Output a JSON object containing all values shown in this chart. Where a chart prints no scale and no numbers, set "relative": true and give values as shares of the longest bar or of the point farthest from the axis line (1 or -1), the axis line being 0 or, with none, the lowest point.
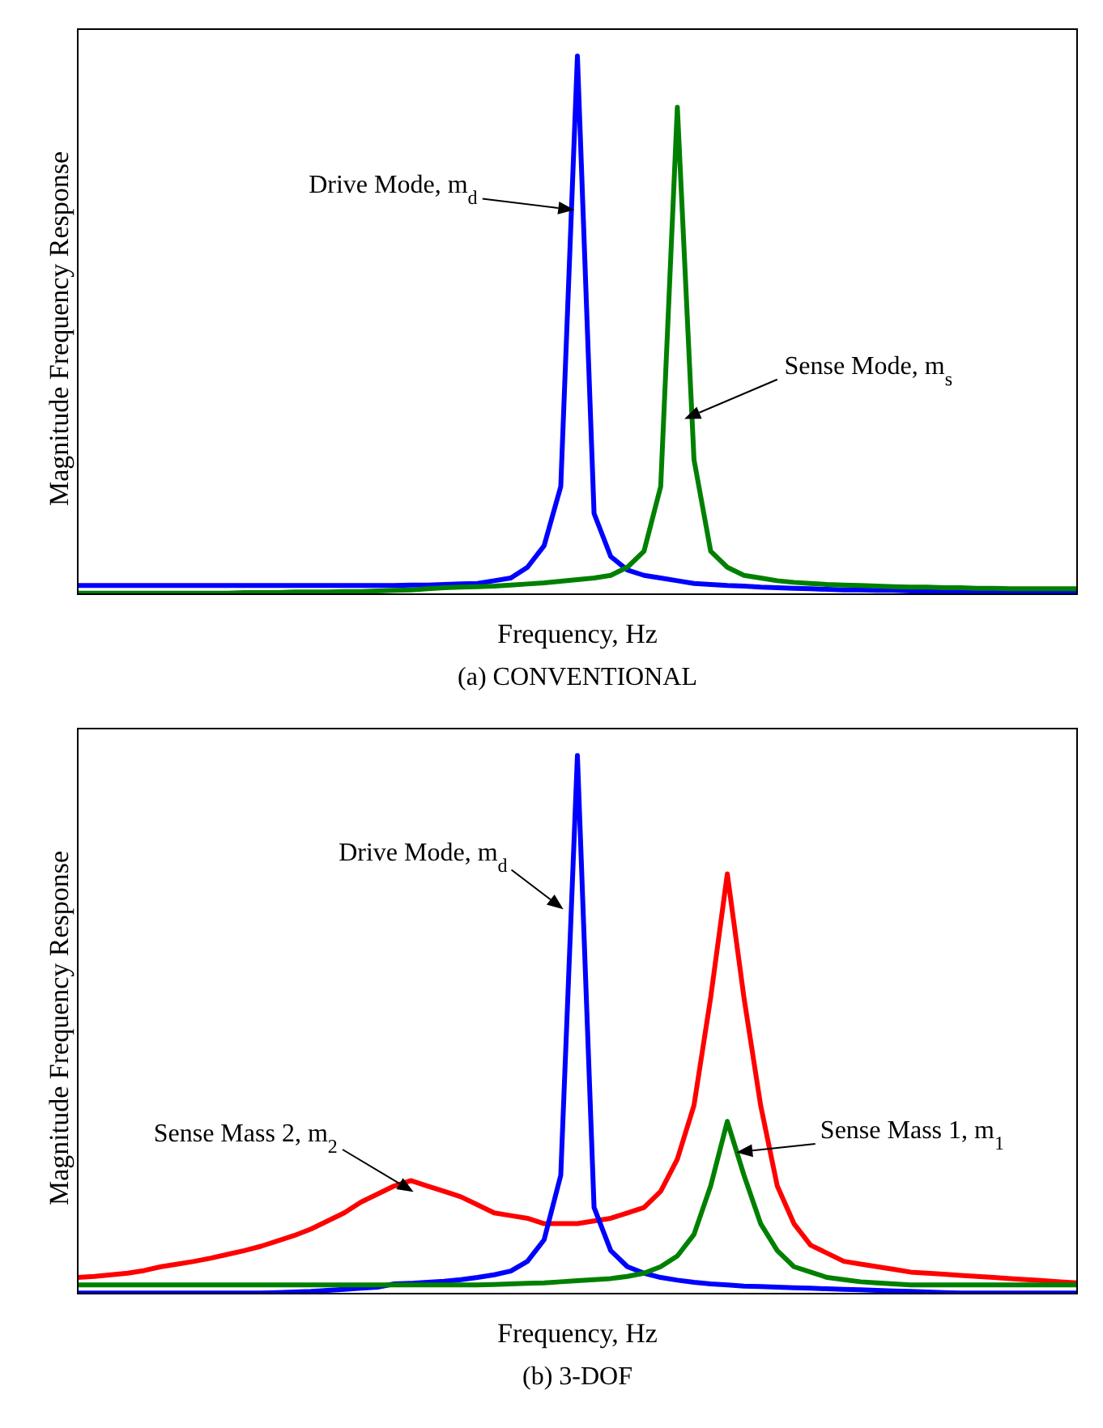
{
  "chart_data": [
    {
      "type": "line",
      "title": "(a)  CONVENTIONAL",
      "xlabel": "Frequency, Hz",
      "ylabel": "Magnitude Frequency Response",
      "relative": true,
      "tick_labels": false,
      "marker": "none",
      "line_style": "solid",
      "annotations": [
        "Drive Mode, m$_{d}$",
        "Sense Mode, m$_{s}$"
      ],
      "categories": [
        null,
        null,
        null,
        null,
        null,
        null,
        null,
        null,
        null,
        null,
        null,
        null,
        null,
        null,
        null,
        null,
        null,
        null,
        null,
        null,
        null,
        null,
        null,
        null,
        null,
        null,
        null,
        null,
        null,
        null,
        null,
        null,
        null,
        null,
        null,
        null,
        null,
        null,
        null,
        null,
        null,
        null,
        null,
        null,
        null,
        null,
        null,
        null,
        null,
        null,
        null,
        null,
        null,
        null,
        null,
        null,
        null,
        null,
        null,
        null,
        null
      ],
      "series": [
        {
          "color": "#0000ff",
          "values": [
            0.016,
            0.016,
            0.016,
            0.016,
            0.016,
            0.016,
            0.016,
            0.016,
            0.016,
            0.016,
            0.016,
            0.016,
            0.016,
            0.016,
            0.016,
            0.016,
            0.016,
            0.016,
            0.016,
            0.016,
            0.017,
            0.017,
            0.018,
            0.019,
            0.02,
            0.025,
            0.03,
            0.05,
            0.09,
            0.2,
            1,
            0.15,
            0.07,
            0.045,
            0.035,
            0.03,
            0.025,
            0.02,
            0.018,
            0.016,
            0.015,
            0.013,
            0.012,
            0.011,
            0.01,
            0.009,
            0.008,
            0.008,
            0.007,
            0.007,
            0.006,
            0.006,
            0.006,
            0.005,
            0.005,
            0.005,
            0.005,
            0.005,
            0.005,
            0.005,
            0.005
          ]
        },
        {
          "color": "#008000",
          "values": [
            0.002,
            0.002,
            0.002,
            0.002,
            0.002,
            0.002,
            0.002,
            0.002,
            0.002,
            0.002,
            0.003,
            0.003,
            0.003,
            0.004,
            0.004,
            0.004,
            0.005,
            0.005,
            0.006,
            0.007,
            0.008,
            0.01,
            0.012,
            0.013,
            0.014,
            0.015,
            0.017,
            0.019,
            0.021,
            0.024,
            0.027,
            0.03,
            0.035,
            0.05,
            0.08,
            0.2,
            0.905,
            0.25,
            0.08,
            0.05,
            0.035,
            0.03,
            0.025,
            0.022,
            0.02,
            0.018,
            0.017,
            0.016,
            0.015,
            0.014,
            0.013,
            0.013,
            0.012,
            0.012,
            0.011,
            0.011,
            0.01,
            0.01,
            0.01,
            0.01,
            0.01
          ]
        }
      ]
    },
    {
      "type": "line",
      "title": "(b)  3-DOF",
      "xlabel": "Frequency, Hz",
      "ylabel": "Magnitude Frequency Response",
      "relative": true,
      "tick_labels": false,
      "marker": "none",
      "line_style": "solid",
      "annotations": [
        "Drive Mode, m$_{d}$",
        "Sense Mass 1, m$_{1}$",
        "Sense Mass 2, m$_{2}$"
      ],
      "categories": [
        null,
        null,
        null,
        null,
        null,
        null,
        null,
        null,
        null,
        null,
        null,
        null,
        null,
        null,
        null,
        null,
        null,
        null,
        null,
        null,
        null,
        null,
        null,
        null,
        null,
        null,
        null,
        null,
        null,
        null,
        null,
        null,
        null,
        null,
        null,
        null,
        null,
        null,
        null,
        null,
        null,
        null,
        null,
        null,
        null,
        null,
        null,
        null,
        null,
        null,
        null,
        null,
        null,
        null,
        null,
        null,
        null,
        null,
        null,
        null,
        null
      ],
      "series": [
        {
          "color": "#ff0000",
          "values": [
            0.03,
            0.032,
            0.035,
            0.038,
            0.043,
            0.05,
            0.055,
            0.06,
            0.066,
            0.073,
            0.08,
            0.088,
            0.098,
            0.108,
            0.12,
            0.135,
            0.15,
            0.17,
            0.185,
            0.2,
            0.21,
            0.2,
            0.19,
            0.18,
            0.165,
            0.15,
            0.145,
            0.14,
            0.13,
            0.13,
            0.13,
            0.135,
            0.14,
            0.15,
            0.16,
            0.19,
            0.25,
            0.35,
            0.55,
            0.78,
            0.55,
            0.35,
            0.2,
            0.13,
            0.09,
            0.075,
            0.06,
            0.055,
            0.05,
            0.045,
            0.04,
            0.038,
            0.036,
            0.034,
            0.032,
            0.03,
            0.028,
            0.026,
            0.024,
            0.022,
            0.02
          ]
        },
        {
          "color": "#0000ff",
          "values": [
            0.001,
            0.001,
            0.001,
            0.001,
            0.001,
            0.001,
            0.001,
            0.001,
            0.001,
            0.001,
            0.001,
            0.001,
            0.002,
            0.003,
            0.004,
            0.006,
            0.008,
            0.01,
            0.012,
            0.018,
            0.019,
            0.021,
            0.023,
            0.026,
            0.03,
            0.035,
            0.042,
            0.06,
            0.1,
            0.22,
            1,
            0.16,
            0.08,
            0.05,
            0.038,
            0.03,
            0.025,
            0.021,
            0.018,
            0.016,
            0.014,
            0.013,
            0.012,
            0.011,
            0.01,
            0.009,
            0.008,
            0.007,
            0.006,
            0.005,
            0.004,
            0.003,
            0.002,
            0.001,
            0.001,
            0.001,
            0.001,
            0.001,
            0.001,
            0.001,
            0.001
          ]
        },
        {
          "color": "#008000",
          "values": [
            0.016,
            0.016,
            0.016,
            0.016,
            0.016,
            0.016,
            0.016,
            0.016,
            0.016,
            0.016,
            0.016,
            0.016,
            0.016,
            0.016,
            0.016,
            0.016,
            0.016,
            0.016,
            0.016,
            0.016,
            0.016,
            0.016,
            0.016,
            0.016,
            0.016,
            0.017,
            0.018,
            0.019,
            0.02,
            0.022,
            0.024,
            0.026,
            0.028,
            0.032,
            0.038,
            0.05,
            0.07,
            0.11,
            0.2,
            0.32,
            0.22,
            0.13,
            0.08,
            0.05,
            0.04,
            0.03,
            0.026,
            0.022,
            0.02,
            0.018,
            0.016,
            0.016,
            0.016,
            0.016,
            0.016,
            0.016,
            0.016,
            0.016,
            0.016,
            0.016,
            0.016
          ]
        }
      ]
    }
  ]
}
